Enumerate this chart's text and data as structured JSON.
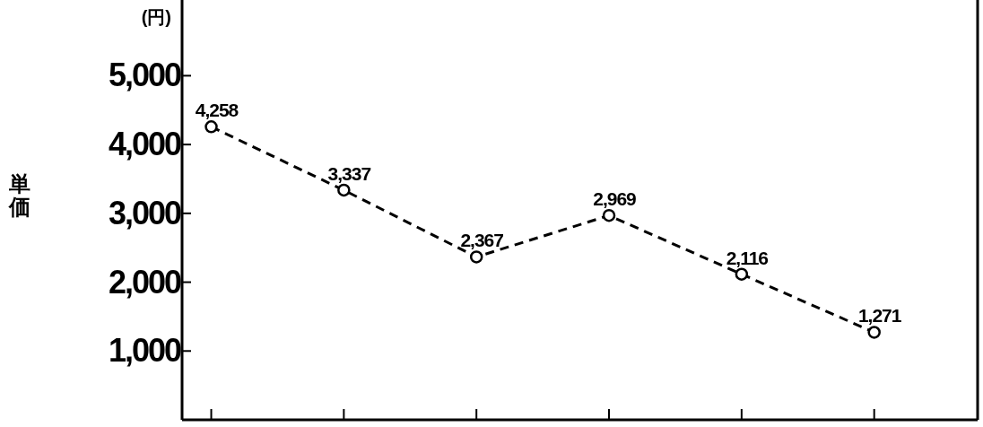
{
  "chart_data": {
    "type": "line",
    "ylabel": "単価",
    "annotations": [
      "(円)"
    ],
    "categories": [
      null,
      null,
      null,
      null,
      null,
      null
    ],
    "series": [
      {
        "color": "#000000",
        "values": [
          4258,
          3337,
          2367,
          2969,
          2116,
          1271
        ]
      }
    ],
    "ylim": [
      0,
      6100
    ],
    "yticks": [
      {
        "value": 1000,
        "label": "1,000"
      },
      {
        "value": 2000,
        "label": "2,000"
      },
      {
        "value": 3000,
        "label": "3,000"
      },
      {
        "value": 4000,
        "label": "4,000"
      },
      {
        "value": 5000,
        "label": "5,000"
      }
    ],
    "value_labels": [
      "4,258",
      "3,337",
      "2,367",
      "2,969",
      "2,116",
      "1,271"
    ],
    "marker": "circle",
    "line_style": "dashed",
    "grid": false
  }
}
